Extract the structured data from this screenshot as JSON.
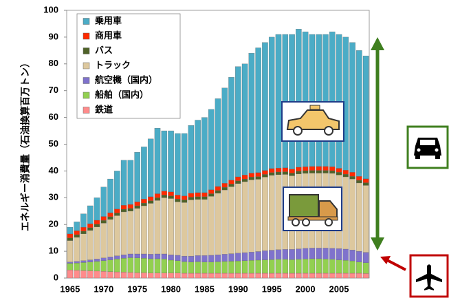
{
  "chart_data": {
    "type": "stacked_bar",
    "y_label": "エネルギー消費量（石油換算百万トン）",
    "categories": [
      "1965",
      null,
      null,
      null,
      null,
      "1970",
      null,
      null,
      null,
      null,
      "1975",
      null,
      null,
      null,
      null,
      "1980",
      null,
      null,
      null,
      null,
      "1985",
      null,
      null,
      null,
      null,
      "1990",
      null,
      null,
      null,
      null,
      "1995",
      null,
      null,
      null,
      null,
      "2000",
      null,
      null,
      null,
      null,
      "2005",
      null,
      null,
      null,
      null
    ],
    "ylim": [
      0,
      100
    ],
    "yticks": [
      0,
      10,
      20,
      30,
      40,
      50,
      60,
      70,
      80,
      90,
      100
    ],
    "series": [
      {
        "name": "鉄道",
        "color": "#ff8b8b",
        "values": [
          3.0,
          2.9,
          2.8,
          2.7,
          2.6,
          2.5,
          2.4,
          2.3,
          2.2,
          2.1,
          2.0,
          2.0,
          1.9,
          1.9,
          1.9,
          1.9,
          1.9,
          1.8,
          1.8,
          1.8,
          1.8,
          1.8,
          1.8,
          1.8,
          1.8,
          1.8,
          1.8,
          1.8,
          1.8,
          1.8,
          1.8,
          1.8,
          1.8,
          1.8,
          1.8,
          1.8,
          1.8,
          1.8,
          1.8,
          1.8,
          1.8,
          1.8,
          1.8,
          1.8,
          1.7
        ]
      },
      {
        "name": "船舶（国内）",
        "color": "#92d050",
        "values": [
          2.5,
          2.7,
          3.0,
          3.3,
          3.6,
          4.0,
          4.4,
          4.8,
          5.2,
          5.5,
          5.5,
          5.4,
          5.3,
          5.3,
          5.2,
          4.8,
          4.6,
          4.3,
          4.2,
          4.3,
          4.2,
          4.2,
          4.3,
          4.4,
          4.5,
          4.6,
          4.7,
          4.8,
          4.9,
          5.0,
          5.1,
          5.2,
          5.2,
          5.1,
          5.2,
          5.3,
          5.4,
          5.4,
          5.3,
          5.2,
          5.0,
          4.8,
          4.6,
          4.2,
          4.0
        ]
      },
      {
        "name": "航空機（国内）",
        "color": "#7f72cc",
        "values": [
          0.5,
          0.6,
          0.7,
          0.8,
          0.9,
          1.0,
          1.1,
          1.2,
          1.3,
          1.4,
          1.5,
          1.6,
          1.7,
          1.8,
          1.9,
          2.0,
          2.0,
          2.1,
          2.2,
          2.3,
          2.4,
          2.5,
          2.6,
          2.7,
          2.8,
          2.9,
          3.0,
          3.1,
          3.2,
          3.4,
          3.5,
          3.6,
          3.7,
          3.8,
          3.9,
          4.0,
          4.0,
          4.0,
          4.1,
          4.1,
          4.2,
          4.2,
          4.1,
          4.0,
          3.9
        ]
      },
      {
        "name": "トラック",
        "color": "#ddc89e",
        "values": [
          8,
          9,
          10,
          11,
          12,
          13,
          14,
          15,
          16,
          16,
          17,
          18,
          19,
          20,
          21,
          21,
          20,
          20,
          21,
          21,
          21,
          22,
          23,
          24,
          25,
          26,
          26.5,
          27,
          27,
          27.5,
          28,
          28,
          28,
          27.5,
          28,
          28,
          28,
          28,
          28,
          28,
          27.5,
          27,
          26.5,
          25.5,
          25
        ]
      },
      {
        "name": "バス",
        "color": "#4f6228",
        "values": [
          1,
          1,
          1,
          1,
          1,
          1,
          1,
          1,
          1,
          1,
          1,
          1,
          1,
          1,
          1,
          1,
          1,
          1,
          1,
          1,
          1,
          1,
          1,
          1,
          1,
          1,
          1,
          1,
          1,
          1,
          1,
          1,
          1,
          1,
          1,
          1,
          1,
          1,
          1,
          1,
          1,
          1,
          1,
          1,
          1
        ]
      },
      {
        "name": "商用車",
        "color": "#ff2a00",
        "values": [
          1.5,
          1.5,
          1.5,
          1.5,
          1.5,
          1.5,
          1.5,
          1.5,
          1.5,
          1.5,
          1.5,
          1.5,
          1.5,
          1.5,
          1.5,
          1.5,
          1.5,
          1.5,
          1.5,
          1.5,
          1.5,
          1.5,
          1.5,
          1.5,
          1.5,
          1.5,
          1.5,
          1.5,
          1.5,
          1.5,
          1.5,
          1.5,
          1.5,
          1.5,
          1.5,
          1.5,
          1.5,
          1.5,
          1.5,
          1.5,
          1.5,
          1.5,
          1.5,
          1.5,
          1.5
        ]
      },
      {
        "name": "乗用車",
        "color": "#4bacc6",
        "values": [
          2.5,
          3.3,
          5.0,
          6.7,
          8.4,
          11,
          12.6,
          14.2,
          16.8,
          16.5,
          18.5,
          19.5,
          21.6,
          24.5,
          22.5,
          22.8,
          23,
          23.3,
          25.3,
          27.1,
          28.1,
          30,
          32.8,
          35.6,
          38.4,
          41.2,
          41.5,
          44.8,
          46.6,
          47.8,
          49.1,
          49.9,
          49.8,
          50.3,
          51.6,
          50.4,
          49.3,
          49.3,
          49.3,
          50.4,
          50,
          49.7,
          48.5,
          47,
          45.9
        ]
      }
    ]
  }
}
